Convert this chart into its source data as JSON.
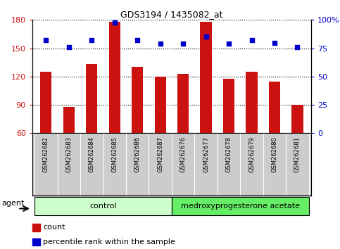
{
  "title": "GDS3194 / 1435082_at",
  "samples": [
    "GSM262682",
    "GSM262683",
    "GSM262684",
    "GSM262685",
    "GSM262686",
    "GSM262687",
    "GSM262676",
    "GSM262677",
    "GSM262678",
    "GSM262679",
    "GSM262680",
    "GSM262681"
  ],
  "counts": [
    125,
    88,
    133,
    178,
    130,
    120,
    123,
    178,
    118,
    125,
    115,
    90
  ],
  "percentiles": [
    82,
    76,
    82,
    98,
    82,
    79,
    79,
    85,
    79,
    82,
    80,
    76
  ],
  "bar_color": "#cc1111",
  "dot_color": "#0000cc",
  "ylim_left": [
    60,
    180
  ],
  "ylim_right": [
    0,
    100
  ],
  "yticks_left": [
    60,
    90,
    120,
    150,
    180
  ],
  "yticks_right": [
    0,
    25,
    50,
    75,
    100
  ],
  "ytick_labels_right": [
    "0",
    "25",
    "50",
    "75",
    "100%"
  ],
  "control_samples": 6,
  "group_labels": [
    "control",
    "medroxyprogesterone acetate"
  ],
  "group_colors": [
    "#ccffcc",
    "#66ee66"
  ],
  "agent_label": "agent",
  "legend_count_label": "count",
  "legend_pct_label": "percentile rank within the sample",
  "bar_color_legend": "#cc1111",
  "dot_color_legend": "#0000cc",
  "plot_bg": "#ffffff",
  "bar_width": 0.5,
  "xlabel_bg": "#cccccc",
  "ylabel_left_color": "#cc1111",
  "ylabel_right_color": "#0000cc",
  "bg_color": "#ffffff"
}
